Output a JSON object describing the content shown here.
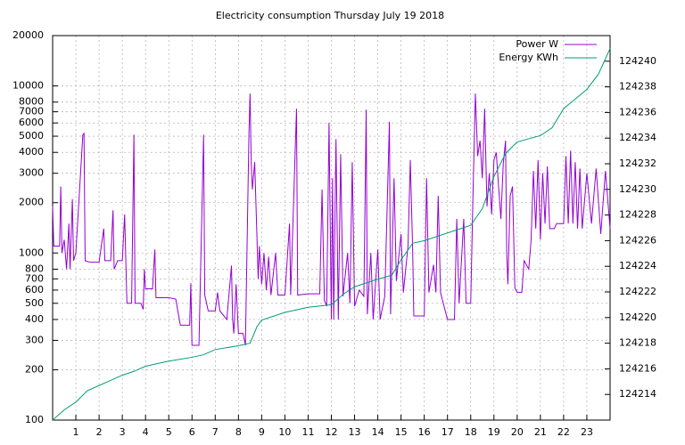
{
  "chart_data": {
    "type": "line",
    "title": "Electricity consumption Thursday July 19 2018",
    "xlim": [
      0,
      24
    ],
    "xticks": [
      1,
      2,
      3,
      4,
      5,
      6,
      7,
      8,
      9,
      10,
      11,
      12,
      13,
      14,
      15,
      16,
      17,
      18,
      19,
      20,
      21,
      22,
      23
    ],
    "ylim": [
      100,
      20000
    ],
    "ylog": true,
    "yticks": [
      100,
      200,
      300,
      400,
      500,
      600,
      700,
      800,
      1000,
      2000,
      3000,
      4000,
      5000,
      6000,
      7000,
      8000,
      10000,
      20000
    ],
    "y2lim": [
      124212,
      124242
    ],
    "y2ticks": [
      124214,
      124216,
      124218,
      124220,
      124222,
      124224,
      124226,
      124228,
      124230,
      124232,
      124234,
      124236,
      124238,
      124240
    ],
    "grid": true,
    "legend": "top-right",
    "series": [
      {
        "name": "Power W",
        "color": "#9400d3",
        "x": [
          0,
          0.05,
          0.3,
          0.35,
          0.4,
          0.5,
          0.6,
          0.7,
          0.75,
          0.85,
          0.9,
          1.0,
          1.3,
          1.35,
          1.4,
          1.6,
          2.0,
          2.2,
          2.25,
          2.5,
          2.6,
          2.65,
          2.8,
          3.0,
          3.1,
          3.2,
          3.4,
          3.5,
          3.55,
          3.8,
          3.9,
          3.95,
          4.0,
          4.3,
          4.4,
          4.45,
          5.0,
          5.3,
          5.5,
          5.9,
          5.95,
          6.0,
          6.3,
          6.5,
          6.55,
          6.7,
          7.0,
          7.1,
          7.2,
          7.5,
          7.7,
          7.75,
          7.8,
          7.9,
          8.0,
          8.2,
          8.3,
          8.4,
          8.45,
          8.5,
          8.55,
          8.6,
          8.7,
          8.8,
          8.85,
          8.9,
          9.0,
          9.1,
          9.2,
          9.3,
          9.4,
          9.6,
          9.7,
          10.0,
          10.2,
          10.25,
          10.5,
          10.55,
          11.0,
          11.5,
          11.6,
          11.7,
          11.8,
          11.9,
          12.0,
          12.05,
          12.1,
          12.2,
          12.3,
          12.4,
          12.5,
          12.7,
          12.8,
          12.9,
          13.0,
          13.2,
          13.4,
          13.5,
          13.55,
          13.7,
          13.8,
          14.0,
          14.1,
          14.3,
          14.5,
          14.55,
          14.7,
          14.8,
          15.0,
          15.1,
          15.3,
          15.4,
          15.5,
          15.55,
          15.8,
          16.0,
          16.1,
          16.2,
          16.4,
          16.5,
          16.6,
          16.7,
          17.0,
          17.3,
          17.4,
          17.5,
          17.7,
          17.8,
          18.0,
          18.1,
          18.2,
          18.3,
          18.4,
          18.5,
          18.6,
          18.7,
          18.8,
          18.9,
          19.0,
          19.1,
          19.2,
          19.3,
          19.4,
          19.5,
          19.55,
          19.6,
          19.7,
          19.8,
          19.9,
          20.0,
          20.2,
          20.3,
          20.5,
          20.6,
          20.7,
          20.8,
          20.9,
          21.0,
          21.1,
          21.2,
          21.3,
          21.4,
          21.6,
          21.7,
          22.0,
          22.1,
          22.2,
          22.3,
          22.4,
          22.5,
          22.6,
          22.7,
          22.8,
          23.0,
          23.2,
          23.4,
          23.6,
          23.8,
          24.0
        ],
        "values": [
          1900,
          1100,
          1100,
          2500,
          1000,
          1200,
          800,
          1500,
          800,
          2100,
          900,
          1000,
          5100,
          5200,
          900,
          880,
          880,
          1400,
          900,
          900,
          1800,
          800,
          900,
          900,
          1700,
          500,
          500,
          5100,
          500,
          500,
          460,
          800,
          610,
          610,
          1050,
          540,
          540,
          530,
          370,
          370,
          660,
          280,
          280,
          5100,
          560,
          450,
          450,
          580,
          450,
          400,
          840,
          400,
          330,
          650,
          330,
          330,
          280,
          1900,
          5000,
          9000,
          3500,
          2400,
          3500,
          1200,
          700,
          1100,
          650,
          1000,
          600,
          950,
          560,
          1000,
          560,
          560,
          1500,
          560,
          7300,
          560,
          570,
          570,
          2400,
          520,
          480,
          6000,
          400,
          2800,
          400,
          4800,
          400,
          3900,
          550,
          1000,
          500,
          3500,
          480,
          600,
          550,
          7200,
          430,
          1000,
          400,
          1050,
          400,
          550,
          6100,
          430,
          2800,
          680,
          1300,
          580,
          1100,
          3600,
          1050,
          420,
          420,
          420,
          2800,
          580,
          850,
          580,
          2200,
          580,
          400,
          400,
          1600,
          500,
          1600,
          500,
          500,
          2300,
          9000,
          3800,
          4700,
          2800,
          7300,
          1900,
          3000,
          1700,
          3600,
          4000,
          2500,
          1600,
          3400,
          4700,
          1000,
          650,
          2200,
          2500,
          620,
          580,
          580,
          900,
          800,
          1200,
          3100,
          1400,
          3600,
          1200,
          3000,
          1500,
          3300,
          1400,
          1400,
          1500,
          1500,
          3800,
          1500,
          4100,
          1500,
          3500,
          1400,
          3200,
          1400,
          3000,
          1500,
          3200,
          1300,
          3100,
          1400
        ]
      },
      {
        "name": "Energy KWh",
        "color": "#009e73",
        "axis": "y2",
        "x": [
          0,
          0.5,
          1.0,
          1.5,
          2.0,
          3.0,
          3.5,
          4.0,
          5.0,
          6.0,
          6.5,
          7.0,
          8.0,
          8.5,
          8.8,
          9.0,
          10.0,
          11.0,
          12.0,
          12.5,
          13.0,
          14.0,
          14.6,
          15.0,
          15.5,
          16.0,
          17.0,
          18.0,
          18.5,
          19.0,
          19.5,
          20.0,
          21.0,
          21.5,
          22.0,
          23.0,
          23.5,
          24.0
        ],
        "values": [
          124212.0,
          124212.8,
          124213.4,
          124214.3,
          124214.7,
          124215.5,
          124215.8,
          124216.2,
          124216.6,
          124216.9,
          124217.1,
          124217.5,
          124217.8,
          124218.0,
          124219.3,
          124219.8,
          124220.4,
          124220.8,
          124221.0,
          124221.8,
          124222.4,
          124223.0,
          124223.3,
          124224.5,
          124225.8,
          124226.0,
          124226.6,
          124227.2,
          124228.5,
          124231.0,
          124232.8,
          124233.7,
          124234.2,
          124234.8,
          124236.3,
          124237.8,
          124239.0,
          124241.0
        ]
      }
    ]
  }
}
